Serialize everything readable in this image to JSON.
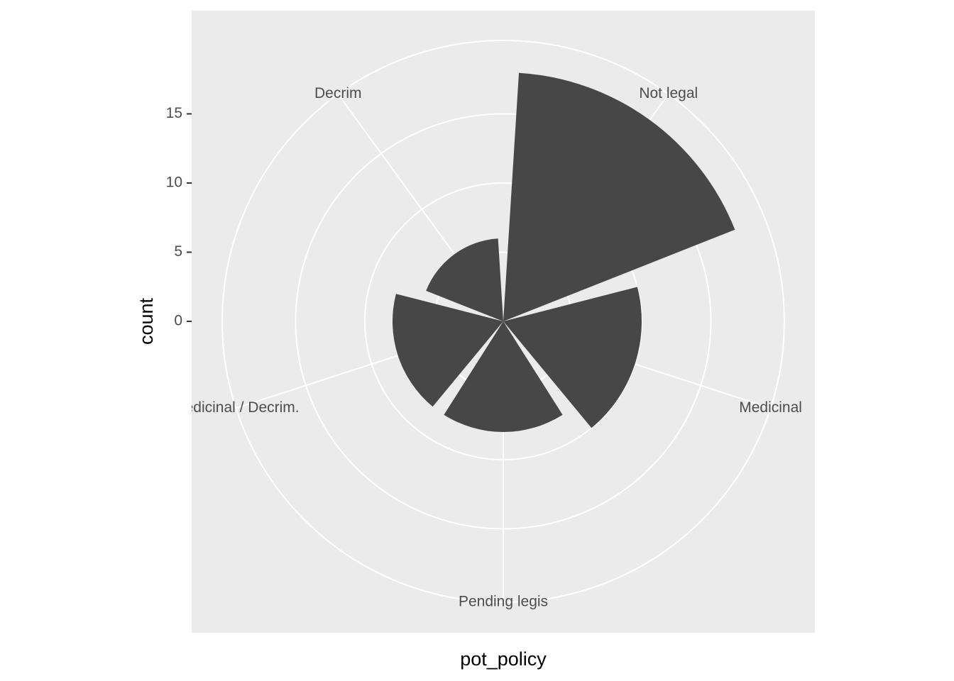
{
  "chart_data": {
    "type": "polar-bar",
    "categories": [
      "Not legal",
      "Medicinal",
      "Pending legis",
      "Medicinal / Decrim.",
      "Decrim"
    ],
    "values": [
      18,
      10,
      8,
      8,
      6
    ],
    "color": "#474747",
    "ylim": [
      0,
      20
    ],
    "yticks": [
      0,
      5,
      10,
      15
    ],
    "grid": true,
    "x_label": "pot_policy",
    "y_label": "count"
  }
}
